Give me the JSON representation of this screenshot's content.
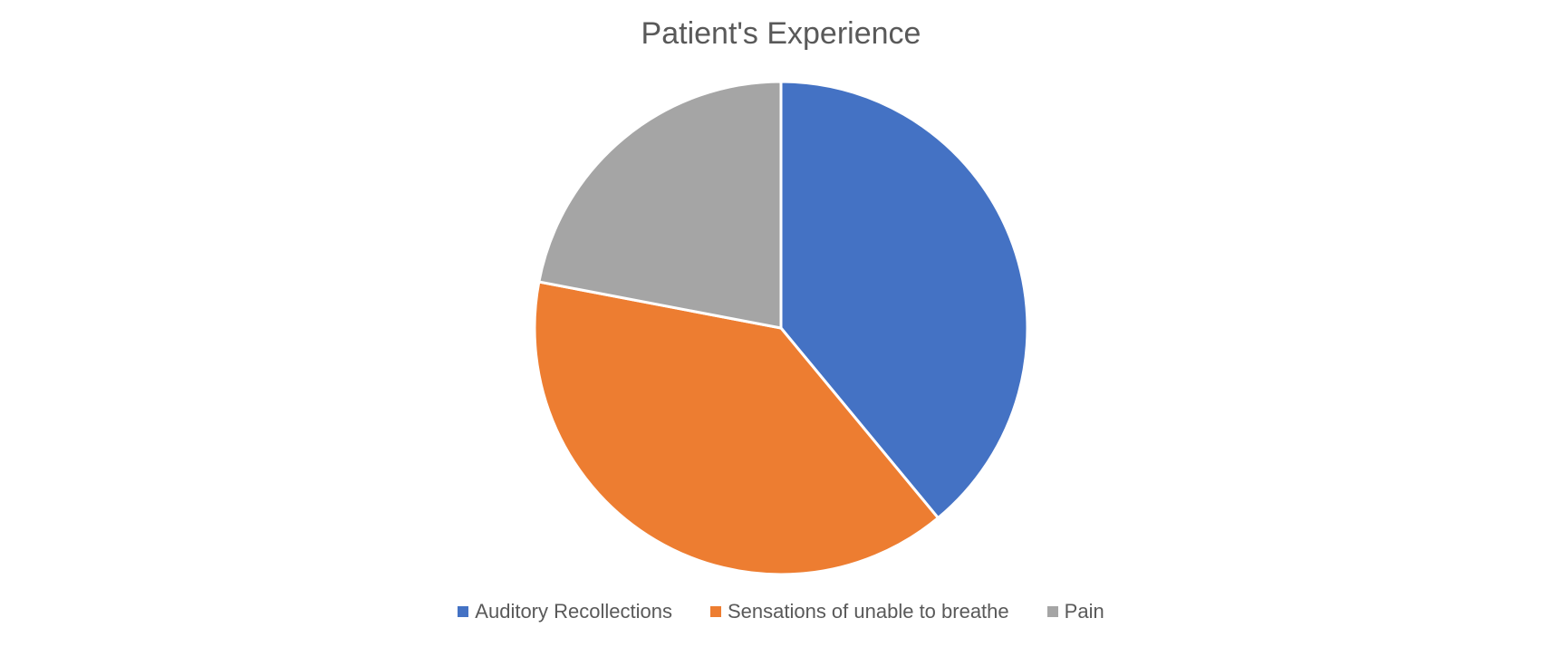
{
  "chart_data": {
    "type": "pie",
    "title": "Patient's Experience",
    "categories": [
      "Auditory Recollections",
      "Sensations of unable to breathe",
      "Pain"
    ],
    "values": [
      39,
      39,
      22
    ],
    "colors": [
      "#4472C4",
      "#ED7D31",
      "#A5A5A5"
    ],
    "legend_position": "bottom",
    "start_angle": "12 o'clock",
    "direction": "clockwise"
  }
}
